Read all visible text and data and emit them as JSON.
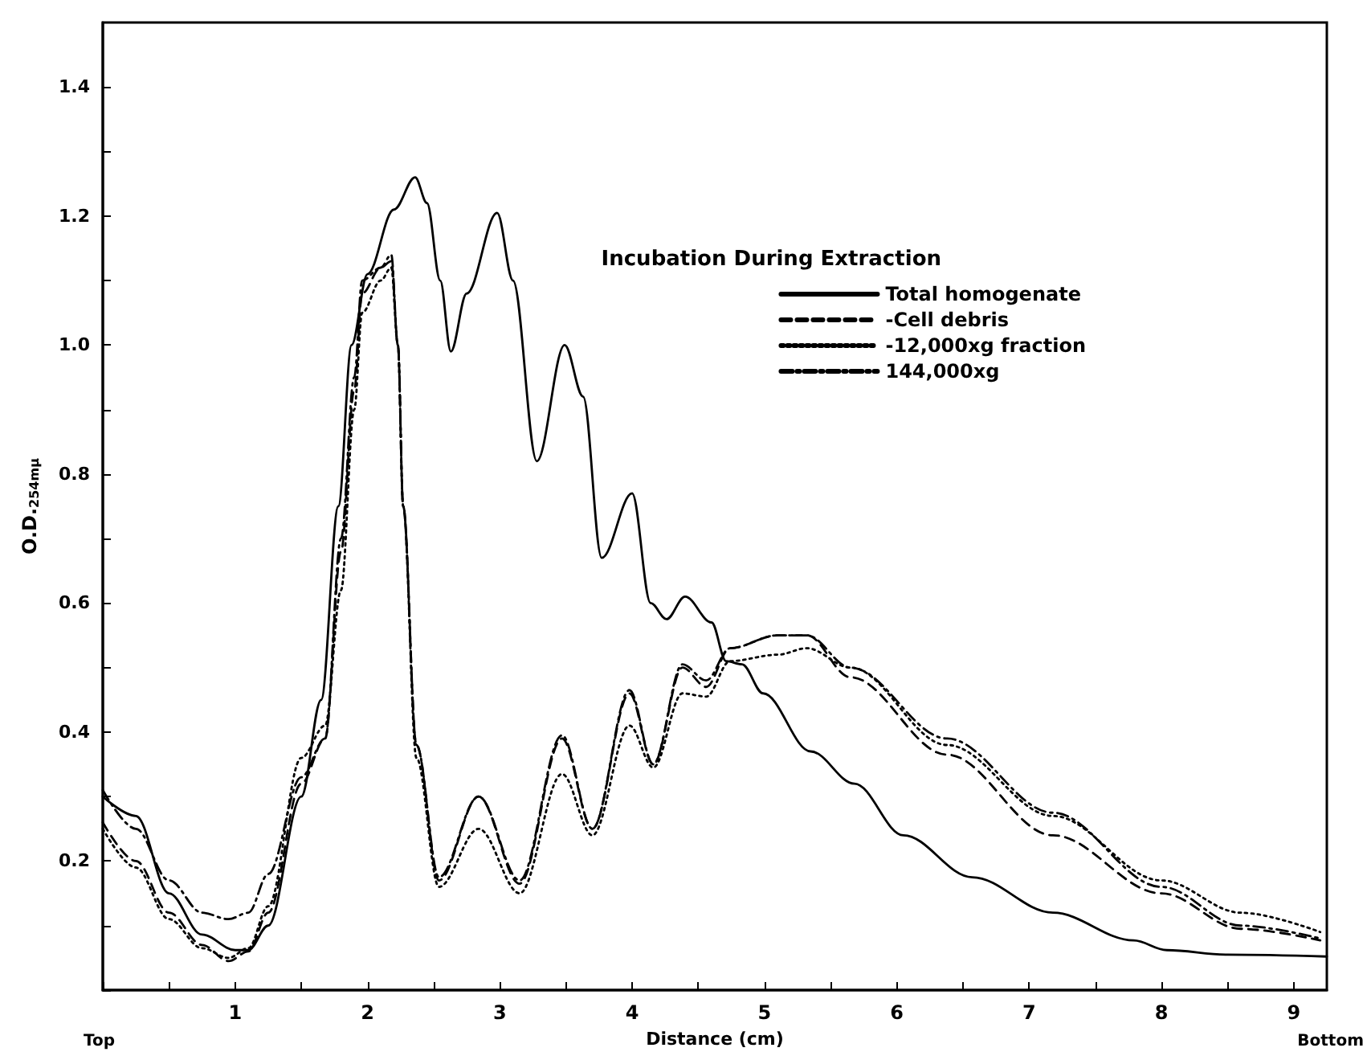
{
  "chart_data": {
    "type": "line",
    "xlabel": "Distance (cm)",
    "ylabel": "O.D.$_{254mμ}$",
    "legend_title": "Incubation During Extraction",
    "legend": "top right",
    "grid": false,
    "marker": "none",
    "xlim": [
      0,
      9.25
    ],
    "annotations": [
      "Top",
      "Bottom"
    ],
    "xticks": [
      {
        "value": 0,
        "label": null
      },
      {
        "value": 0.5,
        "label": null
      },
      1,
      {
        "value": 1.5,
        "label": null
      },
      2,
      {
        "value": 2.5,
        "label": null
      },
      3,
      {
        "value": 3.5,
        "label": null
      },
      4,
      {
        "value": 4.5,
        "label": null
      },
      5,
      {
        "value": 5.5,
        "label": null
      },
      6,
      {
        "value": 6.5,
        "label": null
      },
      7,
      {
        "value": 7.5,
        "label": null
      },
      8,
      {
        "value": 8.5,
        "label": null
      },
      9
    ],
    "ylim": [
      0,
      1.5
    ],
    "yticks": [
      {
        "value": 0,
        "label": null
      },
      {
        "value": 0.1,
        "label": null
      },
      0.2,
      {
        "value": 0.3,
        "label": null
      },
      0.4,
      {
        "value": 0.5,
        "label": null
      },
      0.6,
      {
        "value": 0.7,
        "label": null
      },
      0.8,
      {
        "value": 0.9,
        "label": null
      },
      {
        "value": 1.0,
        "label": "1.0"
      },
      {
        "value": 1.1,
        "label": null
      },
      1.2,
      {
        "value": 1.3,
        "label": null
      },
      1.4
    ],
    "series": [
      {
        "name": "Total homogenate",
        "color": "#000000",
        "line_style": "solid",
        "x": [
          0,
          0.25,
          0.5,
          0.75,
          1.0,
          1.1,
          1.25,
          1.5,
          1.65,
          1.78,
          1.88,
          2.0,
          2.2,
          2.36,
          2.45,
          2.55,
          2.63,
          2.75,
          2.98,
          3.1,
          3.28,
          3.49,
          3.63,
          3.77,
          4.0,
          4.14,
          4.26,
          4.4,
          4.6,
          4.71,
          4.83,
          4.99,
          5.35,
          5.68,
          6.05,
          6.57,
          7.18,
          7.79,
          8.04,
          8.5,
          9.25
        ],
        "values": [
          0.3,
          0.27,
          0.15,
          0.086,
          0.062,
          0.062,
          0.1,
          0.3,
          0.45,
          0.75,
          1.0,
          1.11,
          1.21,
          1.26,
          1.22,
          1.1,
          0.99,
          1.08,
          1.205,
          1.1,
          0.82,
          1.0,
          0.92,
          0.67,
          0.77,
          0.6,
          0.575,
          0.61,
          0.57,
          0.51,
          0.505,
          0.46,
          0.37,
          0.32,
          0.24,
          0.175,
          0.12,
          0.077,
          0.062,
          0.055,
          0.052
        ]
      },
      {
        "name": "-Cell debris",
        "color": "#000000",
        "line_style": "dashed",
        "x": [
          0,
          0.25,
          0.5,
          0.75,
          0.95,
          1.1,
          1.25,
          1.5,
          1.68,
          1.8,
          1.9,
          1.96,
          2.1,
          2.18,
          2.23,
          2.27,
          2.37,
          2.54,
          2.84,
          3.15,
          3.47,
          3.7,
          3.98,
          4.16,
          4.38,
          4.56,
          4.74,
          5.1,
          5.32,
          5.65,
          6.38,
          7.18,
          8.0,
          8.6,
          9.2
        ],
        "values": [
          0.26,
          0.2,
          0.12,
          0.07,
          0.045,
          0.06,
          0.12,
          0.32,
          0.39,
          0.68,
          0.93,
          1.08,
          1.12,
          1.13,
          1.0,
          0.75,
          0.38,
          0.17,
          0.3,
          0.165,
          0.39,
          0.25,
          0.46,
          0.35,
          0.5,
          0.47,
          0.53,
          0.55,
          0.55,
          0.485,
          0.365,
          0.24,
          0.15,
          0.095,
          0.077
        ]
      },
      {
        "name": "-12,000xg fraction",
        "color": "#000000",
        "line_style": "dotted",
        "x": [
          0,
          0.25,
          0.5,
          0.75,
          0.95,
          1.1,
          1.25,
          1.5,
          1.68,
          1.8,
          1.9,
          1.96,
          2.1,
          2.18,
          2.23,
          2.27,
          2.37,
          2.54,
          2.84,
          3.15,
          3.47,
          3.7,
          3.98,
          4.16,
          4.38,
          4.56,
          4.74,
          5.1,
          5.32,
          5.65,
          6.38,
          7.18,
          8.0,
          8.6,
          9.2
        ],
        "values": [
          0.25,
          0.19,
          0.11,
          0.065,
          0.05,
          0.065,
          0.13,
          0.36,
          0.41,
          0.62,
          0.9,
          1.05,
          1.1,
          1.12,
          1.0,
          0.75,
          0.36,
          0.16,
          0.25,
          0.15,
          0.335,
          0.24,
          0.41,
          0.345,
          0.46,
          0.455,
          0.51,
          0.52,
          0.53,
          0.5,
          0.38,
          0.27,
          0.17,
          0.12,
          0.09
        ]
      },
      {
        "name": "144,000xg",
        "color": "#000000",
        "line_style": "dashdot",
        "x": [
          0,
          0.25,
          0.5,
          0.75,
          0.95,
          1.1,
          1.25,
          1.5,
          1.68,
          1.8,
          1.9,
          1.96,
          2.1,
          2.18,
          2.23,
          2.27,
          2.37,
          2.54,
          2.84,
          3.15,
          3.47,
          3.7,
          3.98,
          4.16,
          4.38,
          4.56,
          4.74,
          5.1,
          5.32,
          5.65,
          6.38,
          7.18,
          8.0,
          8.6,
          9.2
        ],
        "values": [
          0.31,
          0.25,
          0.17,
          0.12,
          0.11,
          0.12,
          0.18,
          0.33,
          0.39,
          0.7,
          0.95,
          1.1,
          1.12,
          1.14,
          1.0,
          0.75,
          0.38,
          0.175,
          0.3,
          0.17,
          0.395,
          0.25,
          0.465,
          0.35,
          0.505,
          0.48,
          0.53,
          0.55,
          0.55,
          0.5,
          0.39,
          0.275,
          0.16,
          0.1,
          0.08
        ]
      }
    ]
  }
}
